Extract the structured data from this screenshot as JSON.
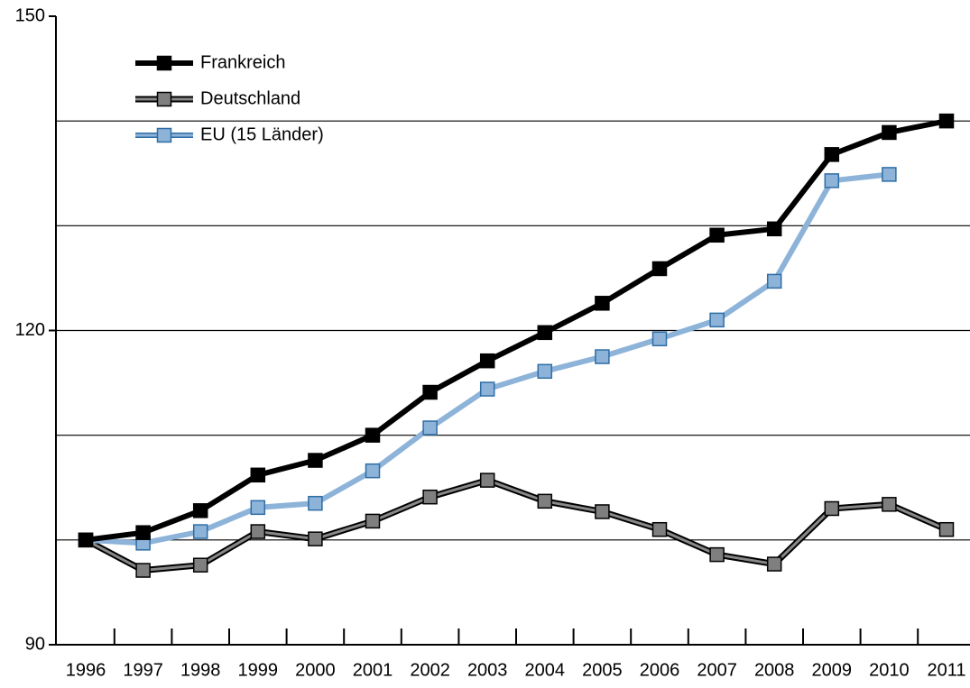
{
  "chart_data": {
    "type": "line",
    "categories": [
      "1996",
      "1997",
      "1998",
      "1999",
      "2000",
      "2001",
      "2002",
      "2003",
      "2004",
      "2005",
      "2006",
      "2007",
      "2008",
      "2009",
      "2010",
      "2011"
    ],
    "series": [
      {
        "name": "Frankreich",
        "color": "#000000",
        "marker_color": "#000000",
        "values": [
          100,
          100.7,
          102.8,
          106.2,
          107.6,
          110.0,
          114.1,
          117.1,
          119.8,
          122.6,
          125.9,
          129.1,
          129.7,
          136.8,
          138.9,
          140.0
        ]
      },
      {
        "name": "Deutschland",
        "color": "#555555",
        "marker_color": "#7f7f7f",
        "values": [
          100,
          97.1,
          97.6,
          100.8,
          100.1,
          101.8,
          104.1,
          105.7,
          103.7,
          102.7,
          101.0,
          98.6,
          97.7,
          103.0,
          103.4,
          101.0
        ]
      },
      {
        "name": "EU (15 Länder)",
        "color": "#8db3d9",
        "marker_color": "#8db3d9",
        "values": [
          100,
          99.7,
          100.8,
          103.1,
          103.5,
          106.6,
          110.7,
          114.4,
          116.1,
          117.5,
          119.2,
          121.0,
          124.7,
          134.3,
          134.9,
          null
        ]
      }
    ],
    "ylim": [
      90,
      150
    ],
    "yticks": [
      90,
      120,
      150
    ],
    "ygrid": [
      100,
      110,
      120,
      130,
      140
    ],
    "grid": true,
    "legend": "upper left"
  }
}
